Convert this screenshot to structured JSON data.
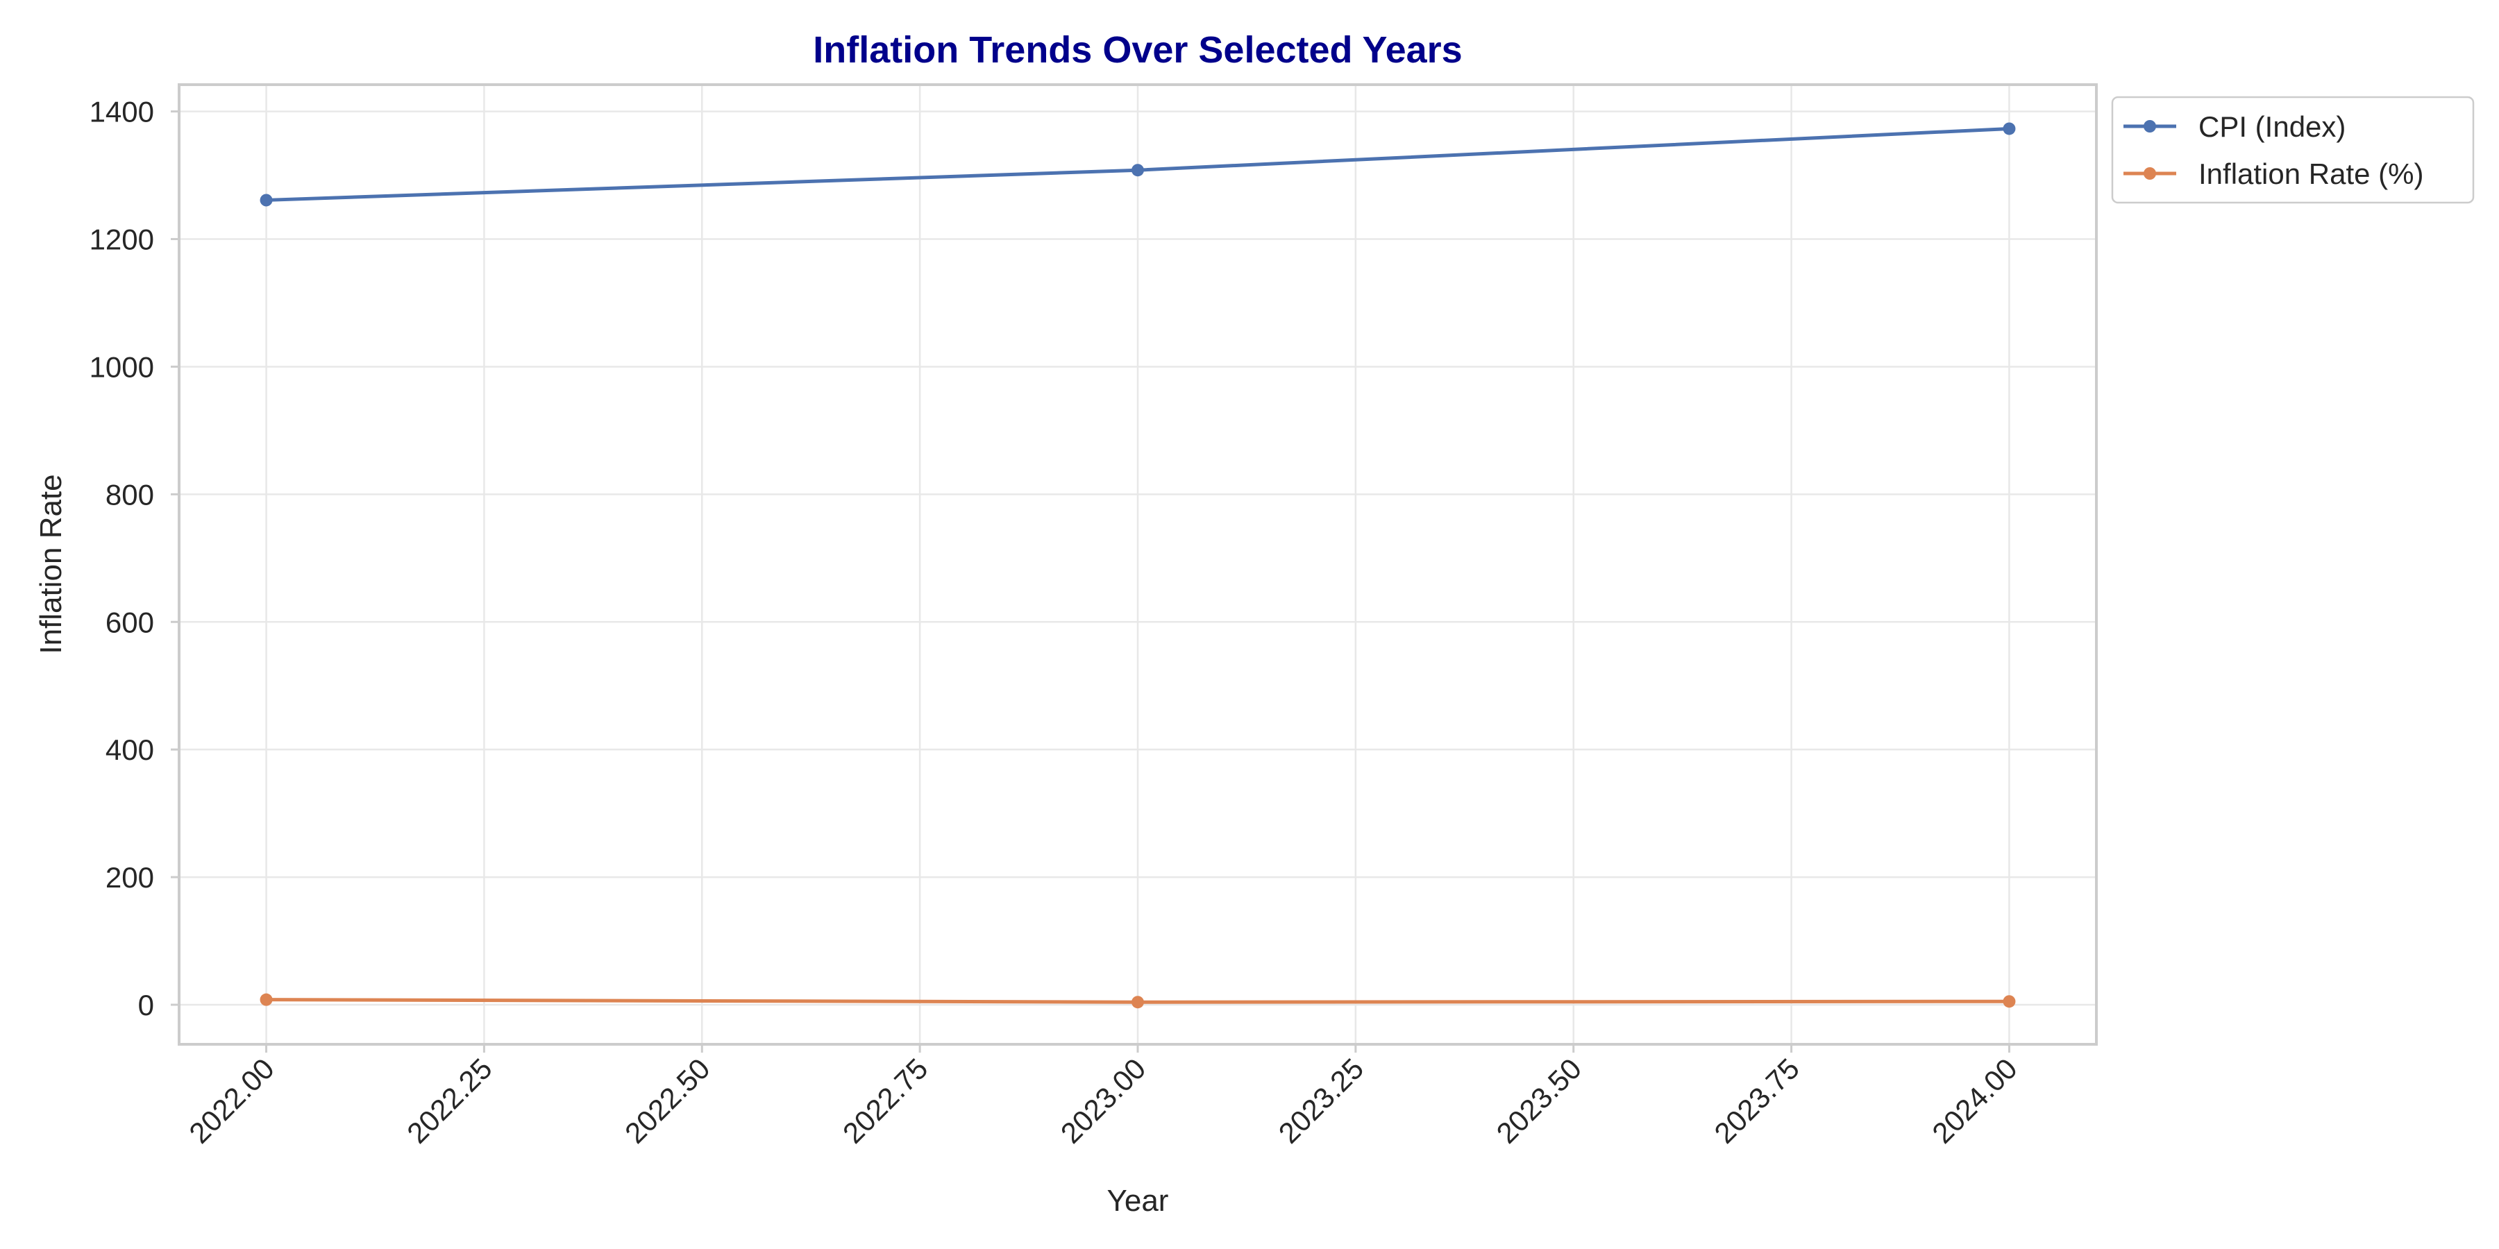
{
  "chart_data": {
    "type": "line",
    "title": "Inflation Trends Over Selected Years",
    "xlabel": "Year",
    "ylabel": "Inflation Rate",
    "xlim": [
      2021.9,
      2024.1
    ],
    "ylim": [
      -62,
      1442
    ],
    "x_ticks": [
      2022.0,
      2022.25,
      2022.5,
      2022.75,
      2023.0,
      2023.25,
      2023.5,
      2023.75,
      2024.0
    ],
    "x_tick_labels": [
      "2022.00",
      "2022.25",
      "2022.50",
      "2022.75",
      "2023.00",
      "2023.25",
      "2023.50",
      "2023.75",
      "2024.00"
    ],
    "y_ticks": [
      0,
      200,
      400,
      600,
      800,
      1000,
      1200,
      1400
    ],
    "y_tick_labels": [
      "0",
      "200",
      "400",
      "600",
      "800",
      "1000",
      "1200",
      "1400"
    ],
    "x": [
      2022,
      2023,
      2024
    ],
    "series": [
      {
        "name": "CPI (Index)",
        "values": [
          1261,
          1308,
          1373
        ],
        "color": "#4c72b0"
      },
      {
        "name": "Inflation Rate (%)",
        "values": [
          8.0,
          4.1,
          5.2
        ],
        "color": "#dd8452"
      }
    ],
    "grid": true,
    "legend_position": "outside-top-right",
    "title_color": "#00008b"
  }
}
